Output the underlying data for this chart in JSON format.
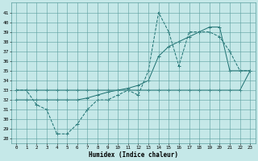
{
  "xlabel": "Humidex (Indice chaleur)",
  "background_color": "#c5e8e8",
  "grid_color": "#5a9e9e",
  "line_color": "#1a6e6e",
  "xlim": [
    -0.5,
    23.5
  ],
  "ylim": [
    27.5,
    42
  ],
  "yticks": [
    28,
    29,
    30,
    31,
    32,
    33,
    34,
    35,
    36,
    37,
    38,
    39,
    40,
    41
  ],
  "xticks": [
    0,
    1,
    2,
    3,
    4,
    5,
    6,
    7,
    8,
    9,
    10,
    11,
    12,
    13,
    14,
    15,
    16,
    17,
    18,
    19,
    20,
    21,
    22,
    23
  ],
  "line1_x": [
    0,
    1,
    2,
    3,
    4,
    5,
    6,
    7,
    8,
    9,
    10,
    11,
    12,
    13,
    14,
    15,
    16,
    17,
    18,
    19,
    20,
    21,
    22,
    23
  ],
  "line1_y": [
    33,
    33,
    31.5,
    31,
    28.5,
    28.5,
    29.5,
    31,
    32,
    32,
    32.5,
    33,
    32.5,
    35,
    41,
    39,
    35.5,
    39,
    39,
    39,
    38.5,
    37,
    35,
    35
  ],
  "line2_x": [
    0,
    1,
    2,
    3,
    4,
    5,
    6,
    7,
    8,
    9,
    10,
    11,
    12,
    13,
    14,
    15,
    16,
    17,
    18,
    19,
    20,
    21,
    22,
    23
  ],
  "line2_y": [
    33,
    33,
    33,
    33,
    33,
    33,
    33,
    33,
    33,
    33,
    33,
    33,
    33,
    33,
    33,
    33,
    33,
    33,
    33,
    33,
    33,
    33,
    33,
    35
  ],
  "line3_x": [
    0,
    1,
    2,
    3,
    4,
    5,
    6,
    7,
    8,
    9,
    10,
    11,
    12,
    13,
    14,
    15,
    16,
    17,
    18,
    19,
    20,
    21,
    22,
    23
  ],
  "line3_y": [
    32,
    32,
    32,
    32,
    32,
    32,
    32,
    32.2,
    32.5,
    32.8,
    33,
    33.2,
    33.5,
    34,
    36.5,
    37.5,
    38,
    38.5,
    39,
    39.5,
    39.5,
    35,
    35,
    35
  ]
}
